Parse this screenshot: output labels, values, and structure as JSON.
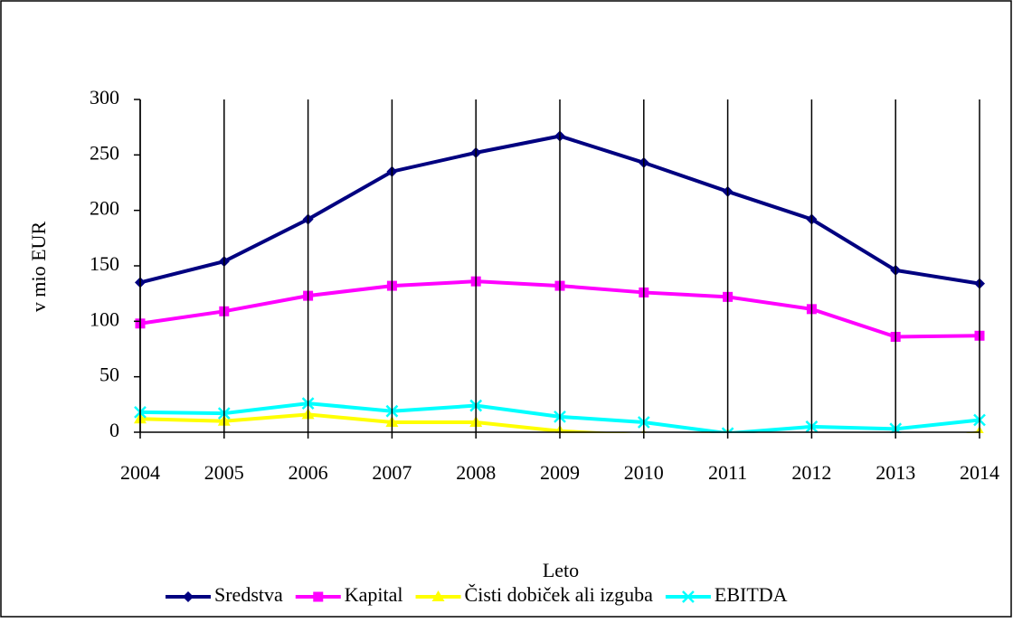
{
  "chart_data": {
    "type": "line",
    "x_label": "Leto",
    "y_label": "v mio EUR",
    "categories": [
      "2004",
      "2005",
      "2006",
      "2007",
      "2008",
      "2009",
      "2010",
      "2011",
      "2012",
      "2013",
      "2014"
    ],
    "series": [
      {
        "name": "Sredstva",
        "color": "#000080",
        "marker": "diamond",
        "values": [
          135,
          154,
          192,
          235,
          252,
          267,
          243,
          217,
          192,
          146,
          134
        ]
      },
      {
        "name": "Kapital",
        "color": "#ff00ff",
        "marker": "square",
        "values": [
          98,
          109,
          123,
          132,
          136,
          132,
          126,
          122,
          111,
          86,
          87
        ]
      },
      {
        "name": "Čisti dobiček ali izguba",
        "color": "#ffff00",
        "marker": "triangle",
        "values": [
          12,
          10,
          16,
          9,
          9,
          1,
          -3,
          -2,
          -10,
          -15,
          0
        ]
      },
      {
        "name": "EBITDA",
        "color": "#00ffff",
        "marker": "x",
        "values": [
          18,
          17,
          26,
          19,
          24,
          14,
          9,
          -1,
          5,
          3,
          11
        ]
      }
    ],
    "ylim": [
      0,
      300
    ],
    "yticks": [
      0,
      50,
      100,
      150,
      200,
      250,
      300
    ],
    "grid": "x",
    "legend": "bottom"
  }
}
